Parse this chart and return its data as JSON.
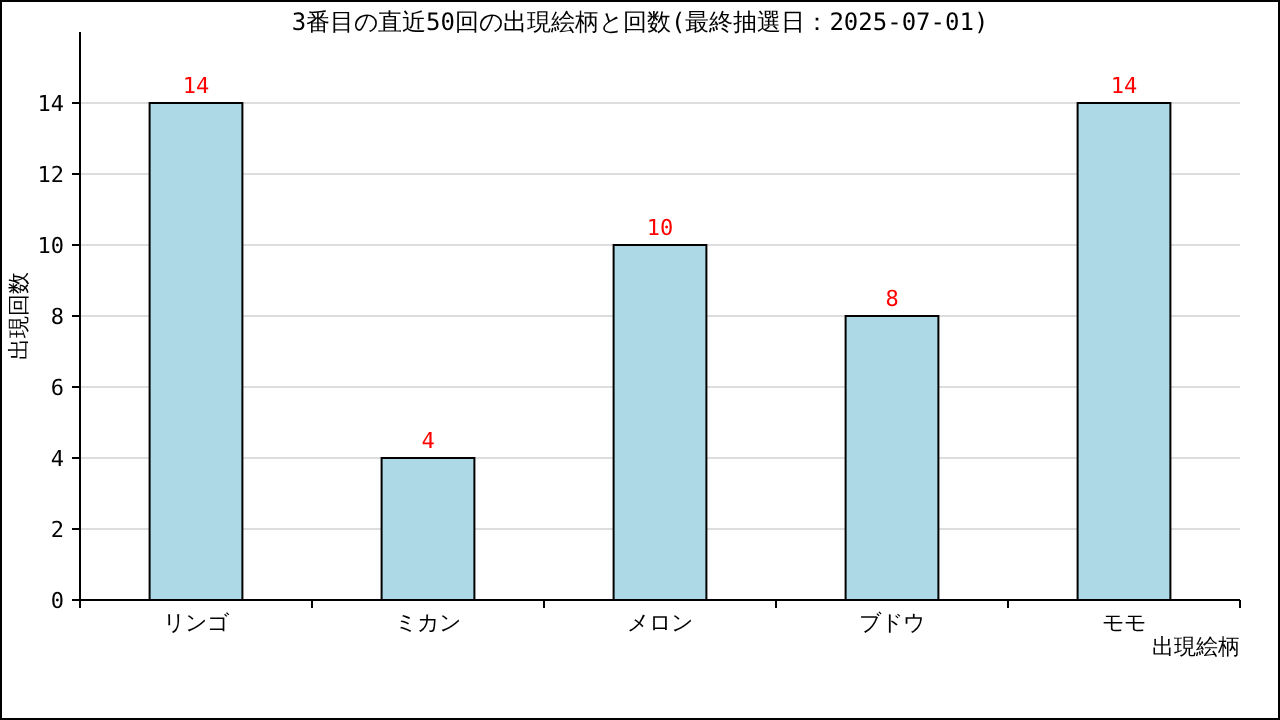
{
  "chart_data": {
    "type": "bar",
    "title": "3番目の直近50回の出現絵柄と回数(最終抽選日：2025-07-01)",
    "xlabel": "出現絵柄",
    "ylabel": "出現回数",
    "categories": [
      "リンゴ",
      "ミカン",
      "メロン",
      "ブドウ",
      "モモ"
    ],
    "series": [
      {
        "color": "#add8e6",
        "values": [
          14,
          4,
          10,
          8,
          14
        ]
      }
    ],
    "ylim": [
      0,
      16
    ],
    "yticks": [
      0,
      2,
      4,
      6,
      8,
      10,
      12,
      14
    ],
    "grid": "y",
    "data_labels": true
  }
}
